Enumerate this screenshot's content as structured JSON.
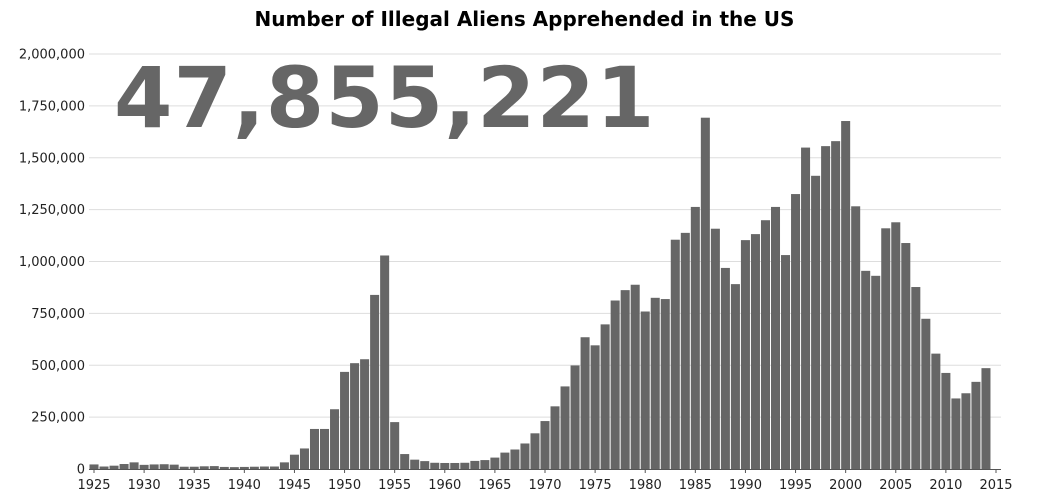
{
  "chart_data": {
    "type": "bar",
    "title": "Number of Illegal Aliens Apprehended in the US",
    "annotation": "47,855,221",
    "xlabel": "",
    "ylabel": "",
    "ylim": [
      0,
      2000000
    ],
    "xlim": [
      1925,
      2015
    ],
    "grid": true,
    "bar_color": "#666666",
    "y_ticks": [
      "0",
      "250,000",
      "500,000",
      "750,000",
      "1,000,000",
      "1,250,000",
      "1,500,000",
      "1,750,000",
      "2,000,000"
    ],
    "x_ticks": [
      "1925",
      "1930",
      "1935",
      "1940",
      "1945",
      "1950",
      "1955",
      "1960",
      "1965",
      "1970",
      "1975",
      "1980",
      "1985",
      "1990",
      "1995",
      "2000",
      "2005",
      "2010",
      "2015"
    ],
    "x": [
      1925,
      1926,
      1927,
      1928,
      1929,
      1930,
      1931,
      1932,
      1933,
      1934,
      1935,
      1936,
      1937,
      1938,
      1939,
      1940,
      1941,
      1942,
      1943,
      1944,
      1945,
      1946,
      1947,
      1948,
      1949,
      1950,
      1951,
      1952,
      1953,
      1954,
      1955,
      1956,
      1957,
      1958,
      1959,
      1960,
      1961,
      1962,
      1963,
      1964,
      1965,
      1966,
      1967,
      1968,
      1969,
      1970,
      1971,
      1972,
      1973,
      1974,
      1975,
      1976,
      1977,
      1978,
      1979,
      1980,
      1981,
      1982,
      1983,
      1984,
      1985,
      1986,
      1987,
      1988,
      1989,
      1990,
      1991,
      1992,
      1993,
      1994,
      1995,
      1996,
      1997,
      1998,
      1999,
      2000,
      2001,
      2002,
      2003,
      2004,
      2005,
      2006,
      2007,
      2008,
      2009,
      2010,
      2011,
      2012,
      2013,
      2014
    ],
    "values": [
      22000,
      12000,
      16000,
      24000,
      32000,
      20000,
      22000,
      23000,
      21000,
      11000,
      11000,
      13000,
      14000,
      10000,
      9000,
      10000,
      11000,
      12000,
      12000,
      32000,
      69000,
      99000,
      193000,
      193000,
      288000,
      468000,
      510000,
      529000,
      839000,
      1029000,
      226000,
      72000,
      45000,
      38000,
      30000,
      29000,
      29000,
      30000,
      39000,
      43000,
      55000,
      79000,
      94000,
      123000,
      172000,
      231000,
      302000,
      398000,
      499000,
      635000,
      596000,
      697000,
      812000,
      862000,
      888000,
      759000,
      825000,
      819000,
      1105000,
      1138000,
      1263000,
      1693000,
      1158000,
      969000,
      891000,
      1103000,
      1132000,
      1199000,
      1263000,
      1031000,
      1325000,
      1549000,
      1413000,
      1556000,
      1580000,
      1677000,
      1266000,
      955000,
      931000,
      1160000,
      1189000,
      1089000,
      877000,
      724000,
      556000,
      463000,
      340000,
      365000,
      420000,
      486000
    ]
  }
}
